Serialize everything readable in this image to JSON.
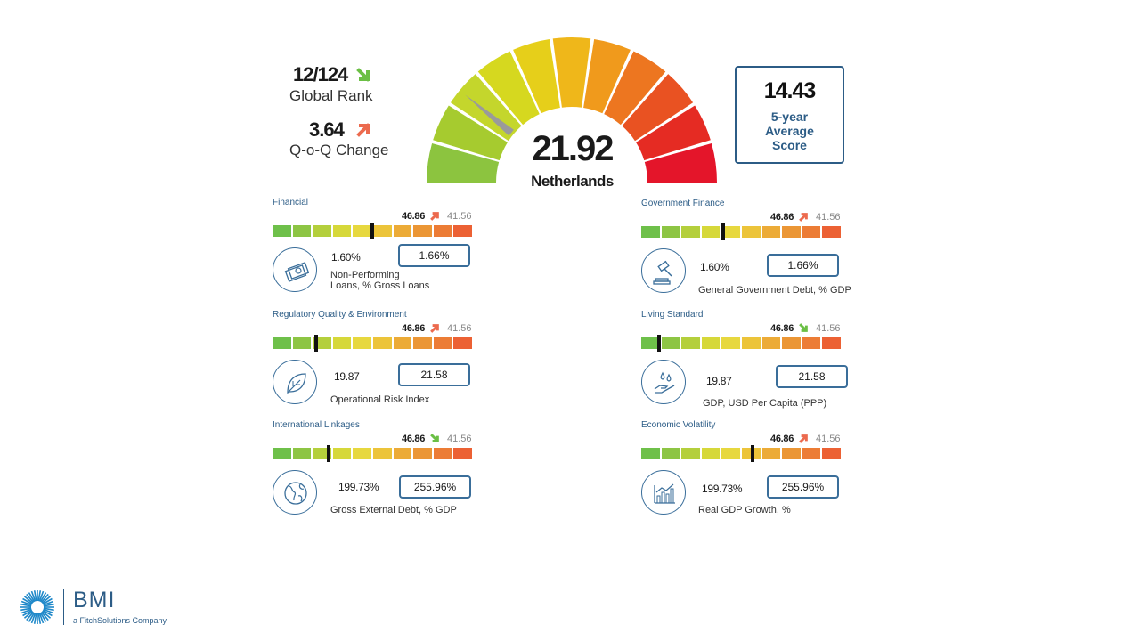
{
  "rank": {
    "value": "12/124",
    "label": "Global Rank",
    "arrow": "down"
  },
  "change": {
    "value": "3.64",
    "label": "Q-o-Q Change",
    "arrow": "up"
  },
  "gauge": {
    "score": "21.92",
    "country": "Netherlands",
    "needle_value": 21.92,
    "max": 100,
    "colors": [
      "#8cc43f",
      "#a6cb2f",
      "#c4d62c",
      "#d6d81f",
      "#e6cf1a",
      "#efb71a",
      "#f09a1c",
      "#ed7620",
      "#e95222",
      "#e52b23",
      "#e4152a"
    ]
  },
  "avg": {
    "value": "14.43",
    "label": "5-year Average Score"
  },
  "bar_colors": [
    "#6ec04a",
    "#8dc544",
    "#b4cf3c",
    "#d6d83a",
    "#e7d83f",
    "#ecc43a",
    "#ecab37",
    "#eb9635",
    "#ec7c35",
    "#ec6134"
  ],
  "sections": [
    {
      "title": "Financial",
      "v1": "46.86",
      "arrow": "up",
      "v2": "41.56",
      "marker": 0.5,
      "icon": "money-icon",
      "metric": "1.60%",
      "box": "1.66%",
      "label1": "Non-Performing",
      "label2": "Loans, % Gross Loans"
    },
    {
      "title": "Government Finance",
      "v1": "46.86",
      "arrow": "up",
      "v2": "41.56",
      "marker": 0.41,
      "icon": "gavel-icon",
      "metric": "1.60%",
      "box": "1.66%",
      "label1": "General Government Debt, % GDP",
      "label2": ""
    },
    {
      "title": "Regulatory Quality & Environment",
      "v1": "46.86",
      "arrow": "up",
      "v2": "41.56",
      "marker": 0.22,
      "icon": "leaf-icon",
      "metric": "19.87",
      "box": "21.58",
      "label1": "Operational Risk Index",
      "label2": ""
    },
    {
      "title": "Living Standard",
      "v1": "46.86",
      "arrow": "down",
      "v2": "41.56",
      "marker": 0.09,
      "icon": "hand-drops-icon",
      "metric": "19.87",
      "box": "21.58",
      "label1": "GDP, USD Per Capita (PPP)",
      "label2": ""
    },
    {
      "title": "International Linkages",
      "v1": "46.86",
      "arrow": "down",
      "v2": "41.56",
      "marker": 0.28,
      "icon": "globe-icon",
      "metric": "199.73%",
      "box": "255.96%",
      "label1": "Gross External Debt, % GDP",
      "label2": ""
    },
    {
      "title": "Economic Volatility",
      "v1": "46.86",
      "arrow": "up",
      "v2": "41.56",
      "marker": 0.56,
      "icon": "chart-icon",
      "metric": "199.73%",
      "box": "255.96%",
      "label1": "Real GDP Growth, %",
      "label2": ""
    }
  ],
  "logo": {
    "name": "BMI",
    "tagline": "a FitchSolutions Company"
  }
}
